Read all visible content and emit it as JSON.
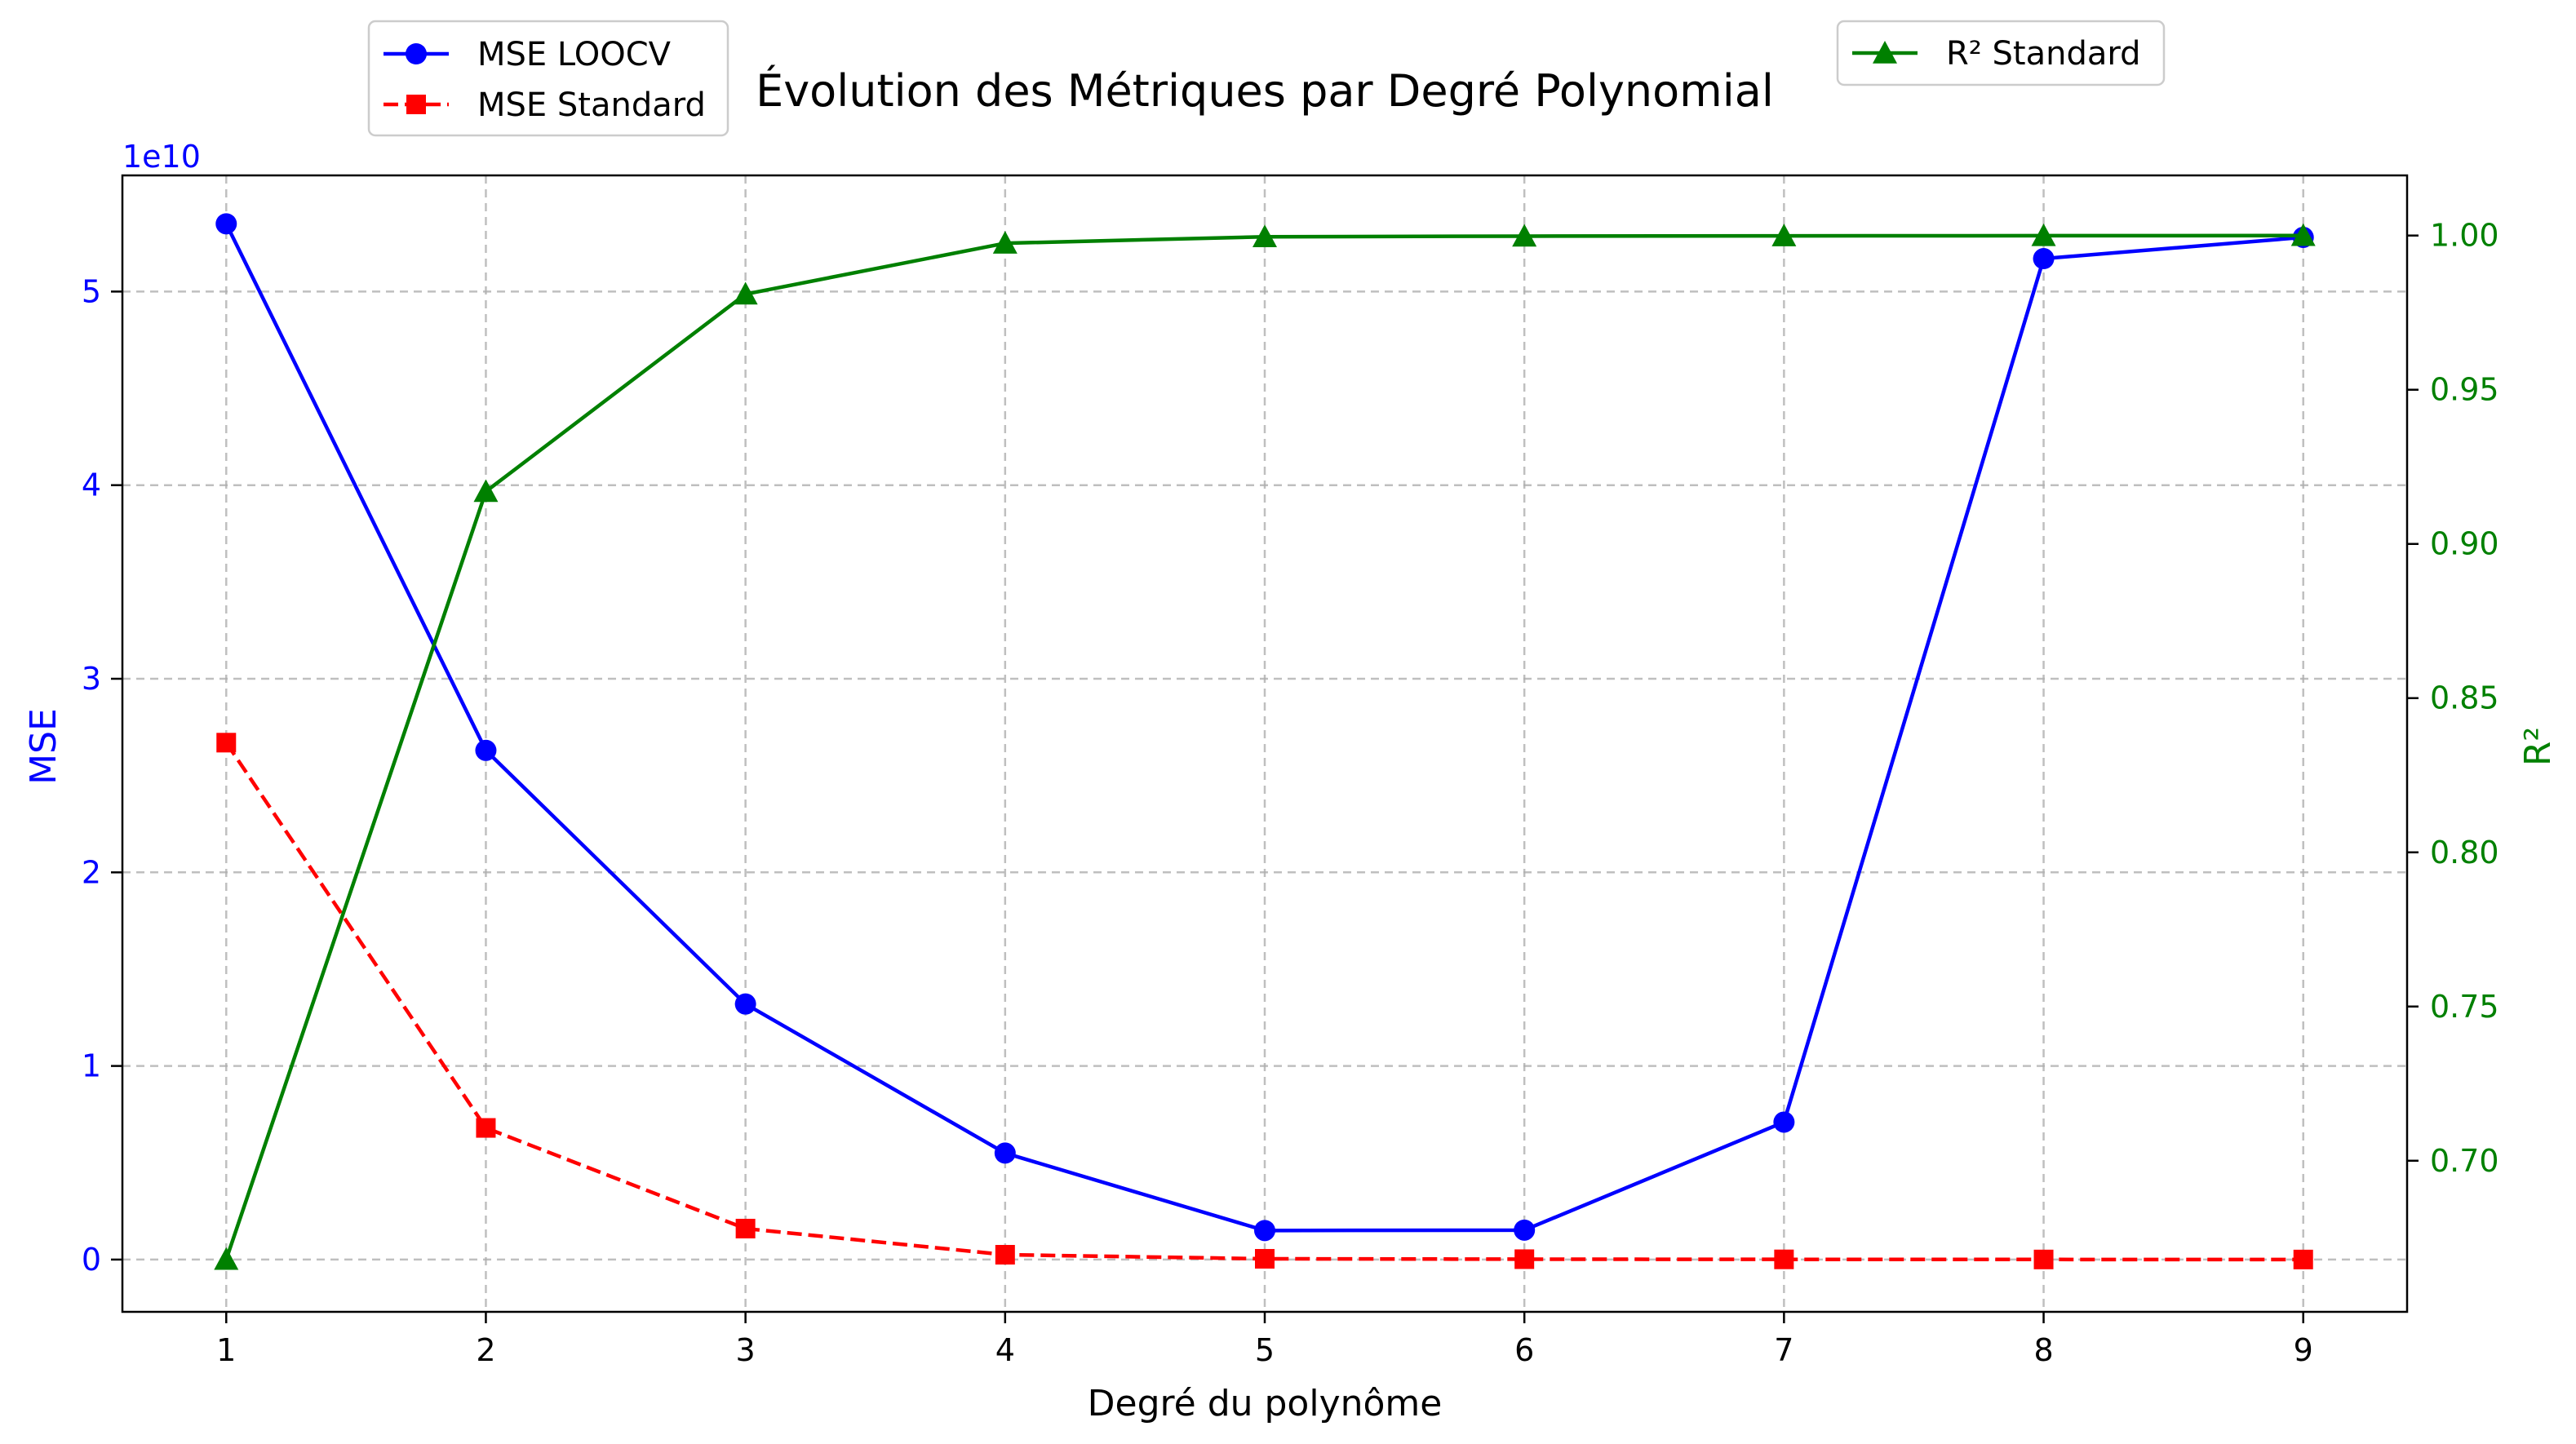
{
  "chart_data": {
    "type": "line",
    "title": "Évolution des Métriques par Degré Polynomial",
    "xlabel": "Degré du polynôme",
    "ylabel_left": "MSE",
    "ylabel_right": "R²",
    "left_axis_offset_label": "1e10",
    "x": [
      1,
      2,
      3,
      4,
      5,
      6,
      7,
      8,
      9
    ],
    "x_ticks": [
      "1",
      "2",
      "3",
      "4",
      "5",
      "6",
      "7",
      "8",
      "9"
    ],
    "xlim": [
      0.6,
      9.4
    ],
    "ylim_left": [
      -0.27,
      5.6
    ],
    "ylim_right": [
      0.651,
      1.0195
    ],
    "y_ticks_left": [
      "0",
      "1",
      "2",
      "3",
      "4",
      "5"
    ],
    "y_ticks_right": [
      "0.70",
      "0.75",
      "0.80",
      "0.85",
      "0.90",
      "0.95",
      "1.00"
    ],
    "grid": true,
    "series": [
      {
        "name": "MSE LOOCV",
        "axis": "left",
        "color": "#0000ff",
        "marker": "circle",
        "linestyle": "solid",
        "values": [
          5.35,
          2.63,
          1.32,
          0.55,
          0.15,
          0.152,
          0.71,
          5.17,
          5.28
        ]
      },
      {
        "name": "MSE Standard",
        "axis": "left",
        "color": "#ff0000",
        "marker": "square",
        "linestyle": "dashed",
        "values": [
          2.67,
          0.68,
          0.16,
          0.025,
          0.004,
          0.002,
          0.001,
          0.0005,
          0.0003
        ]
      },
      {
        "name": "R² Standard",
        "axis": "right",
        "color": "#008000",
        "marker": "triangle",
        "linestyle": "solid",
        "values": [
          0.668,
          0.917,
          0.981,
          0.9975,
          0.9996,
          0.9998,
          0.9999,
          0.99995,
          0.99998
        ]
      }
    ],
    "legend_left_placement": "top-left, above plot",
    "legend_right_placement": "top-right, above plot"
  }
}
